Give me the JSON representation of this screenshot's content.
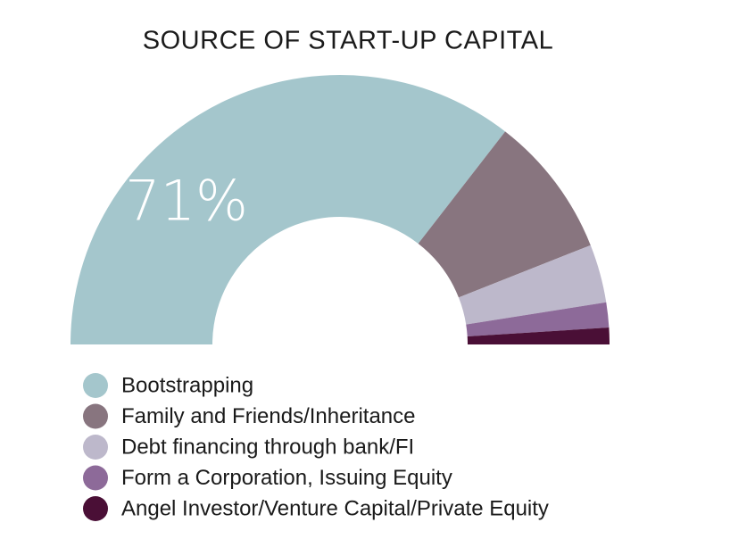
{
  "chart_data": {
    "type": "semi-donut",
    "title": "SOURCE OF START-UP CAPITAL",
    "categories": [
      "Bootstrapping",
      "Family and Friends/Inheritance",
      "Debt financing through bank/FI",
      "Form a Corporation, Issuing Equity",
      "Angel Investor/Venture Capital/Private Equity"
    ],
    "values": [
      71,
      17,
      7,
      3,
      2
    ],
    "value_labels": [
      "71%",
      null,
      null,
      null,
      null
    ],
    "colors": [
      "#a4c6cc",
      "#88757f",
      "#bdb8cb",
      "#8d6a99",
      "#4a0f36"
    ]
  }
}
